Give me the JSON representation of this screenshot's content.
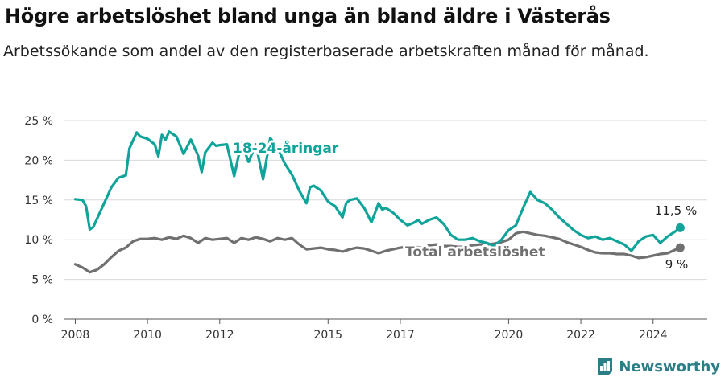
{
  "title": "Högre arbetslöshet bland unga än bland äldre i Västerås",
  "subtitle": "Arbetssökande som andel av den registerbaserade arbetskraften månad för månad.",
  "brand": "Newsworthy",
  "colors": {
    "youth": "#10a39a",
    "total": "#707070",
    "grid": "#d9d9d9"
  },
  "chart_data": {
    "type": "line",
    "ylim": [
      0,
      25
    ],
    "xlim": [
      2007.7,
      2025.5
    ],
    "y_ticks": [
      {
        "value": 0,
        "label": "0 %"
      },
      {
        "value": 5,
        "label": "5 %"
      },
      {
        "value": 10,
        "label": "10 %"
      },
      {
        "value": 15,
        "label": "15 %"
      },
      {
        "value": 20,
        "label": "20 %"
      },
      {
        "value": 25,
        "label": "25 %"
      }
    ],
    "x_ticks": [
      {
        "value": 2008,
        "label": "2008"
      },
      {
        "value": 2010,
        "label": "2010"
      },
      {
        "value": 2012,
        "label": "2012"
      },
      {
        "value": 2015,
        "label": "2015"
      },
      {
        "value": 2017,
        "label": "2017"
      },
      {
        "value": 2020,
        "label": "2020"
      },
      {
        "value": 2022,
        "label": "2022"
      },
      {
        "value": 2024,
        "label": "2024"
      }
    ],
    "series": [
      {
        "name": "18-24-åringar",
        "color": "#10a39a",
        "end_label": "11,5 %",
        "x": [
          2008.0,
          2008.2,
          2008.3,
          2008.4,
          2008.5,
          2008.6,
          2008.8,
          2009.0,
          2009.2,
          2009.4,
          2009.5,
          2009.6,
          2009.7,
          2009.8,
          2010.0,
          2010.2,
          2010.3,
          2010.4,
          2010.5,
          2010.6,
          2010.8,
          2011.0,
          2011.2,
          2011.4,
          2011.5,
          2011.6,
          2011.8,
          2011.9,
          2012.0,
          2012.2,
          2012.4,
          2012.6,
          2012.8,
          2013.0,
          2013.2,
          2013.4,
          2013.6,
          2013.8,
          2014.0,
          2014.2,
          2014.4,
          2014.5,
          2014.6,
          2014.8,
          2015.0,
          2015.2,
          2015.4,
          2015.5,
          2015.6,
          2015.8,
          2016.0,
          2016.2,
          2016.4,
          2016.5,
          2016.6,
          2016.8,
          2017.0,
          2017.2,
          2017.4,
          2017.5,
          2017.6,
          2017.8,
          2018.0,
          2018.2,
          2018.4,
          2018.6,
          2018.8,
          2019.0,
          2019.2,
          2019.4,
          2019.6,
          2019.8,
          2020.0,
          2020.2,
          2020.4,
          2020.6,
          2020.8,
          2021.0,
          2021.2,
          2021.4,
          2021.6,
          2021.8,
          2022.0,
          2022.2,
          2022.4,
          2022.6,
          2022.8,
          2023.0,
          2023.2,
          2023.4,
          2023.6,
          2023.8,
          2024.0,
          2024.2,
          2024.4,
          2024.6,
          2024.75
        ],
        "y": [
          15.1,
          15.0,
          14.2,
          11.3,
          11.6,
          12.6,
          14.6,
          16.6,
          17.8,
          18.1,
          21.5,
          22.5,
          23.5,
          23.0,
          22.7,
          22.0,
          20.5,
          23.2,
          22.6,
          23.6,
          23.0,
          20.8,
          22.6,
          20.6,
          18.5,
          21.0,
          22.2,
          21.8,
          21.9,
          22.0,
          18.0,
          22.2,
          19.8,
          22.0,
          17.6,
          22.8,
          21.6,
          19.6,
          18.2,
          16.2,
          14.6,
          16.6,
          16.8,
          16.2,
          14.8,
          14.2,
          12.8,
          14.6,
          15.0,
          15.2,
          14.0,
          12.2,
          14.6,
          13.8,
          14.0,
          13.4,
          12.5,
          11.8,
          12.2,
          12.5,
          12.0,
          12.5,
          12.8,
          12.0,
          10.6,
          10.0,
          10.0,
          10.2,
          9.8,
          9.6,
          9.2,
          10.0,
          11.2,
          11.8,
          14.0,
          16.0,
          15.0,
          14.6,
          13.8,
          12.8,
          12.0,
          11.2,
          10.6,
          10.2,
          10.4,
          10.0,
          10.2,
          9.8,
          9.4,
          8.6,
          9.8,
          10.4,
          10.6,
          9.6,
          10.4,
          11.0,
          11.5
        ]
      },
      {
        "name": "Total arbetslöshet",
        "color": "#707070",
        "end_label": "9 %",
        "x": [
          2008.0,
          2008.2,
          2008.4,
          2008.6,
          2008.8,
          2009.0,
          2009.2,
          2009.4,
          2009.6,
          2009.8,
          2010.0,
          2010.2,
          2010.4,
          2010.6,
          2010.8,
          2011.0,
          2011.2,
          2011.4,
          2011.6,
          2011.8,
          2012.0,
          2012.2,
          2012.4,
          2012.6,
          2012.8,
          2013.0,
          2013.2,
          2013.4,
          2013.6,
          2013.8,
          2014.0,
          2014.2,
          2014.4,
          2014.6,
          2014.8,
          2015.0,
          2015.2,
          2015.4,
          2015.6,
          2015.8,
          2016.0,
          2016.2,
          2016.4,
          2016.6,
          2016.8,
          2017.0,
          2017.2,
          2017.4,
          2017.6,
          2017.8,
          2018.0,
          2018.2,
          2018.4,
          2018.6,
          2018.8,
          2019.0,
          2019.2,
          2019.4,
          2019.6,
          2019.8,
          2020.0,
          2020.2,
          2020.4,
          2020.6,
          2020.8,
          2021.0,
          2021.2,
          2021.4,
          2021.6,
          2021.8,
          2022.0,
          2022.2,
          2022.4,
          2022.6,
          2022.8,
          2023.0,
          2023.2,
          2023.4,
          2023.6,
          2023.8,
          2024.0,
          2024.2,
          2024.4,
          2024.6,
          2024.75
        ],
        "y": [
          6.9,
          6.5,
          5.9,
          6.2,
          6.9,
          7.8,
          8.6,
          9.0,
          9.8,
          10.1,
          10.1,
          10.2,
          10.0,
          10.3,
          10.1,
          10.5,
          10.2,
          9.6,
          10.2,
          10.0,
          10.1,
          10.2,
          9.6,
          10.2,
          10.0,
          10.3,
          10.1,
          9.8,
          10.2,
          10.0,
          10.2,
          9.4,
          8.8,
          8.9,
          9.0,
          8.8,
          8.7,
          8.5,
          8.8,
          9.0,
          8.9,
          8.6,
          8.3,
          8.6,
          8.8,
          9.0,
          9.1,
          9.1,
          9.0,
          9.3,
          9.4,
          9.2,
          9.2,
          9.1,
          9.1,
          9.3,
          9.4,
          9.4,
          9.5,
          9.7,
          10.0,
          10.8,
          11.0,
          10.8,
          10.6,
          10.5,
          10.3,
          10.1,
          9.7,
          9.4,
          9.1,
          8.7,
          8.4,
          8.3,
          8.3,
          8.2,
          8.2,
          8.0,
          7.7,
          7.8,
          8.0,
          8.2,
          8.3,
          8.7,
          9.0
        ]
      }
    ]
  }
}
